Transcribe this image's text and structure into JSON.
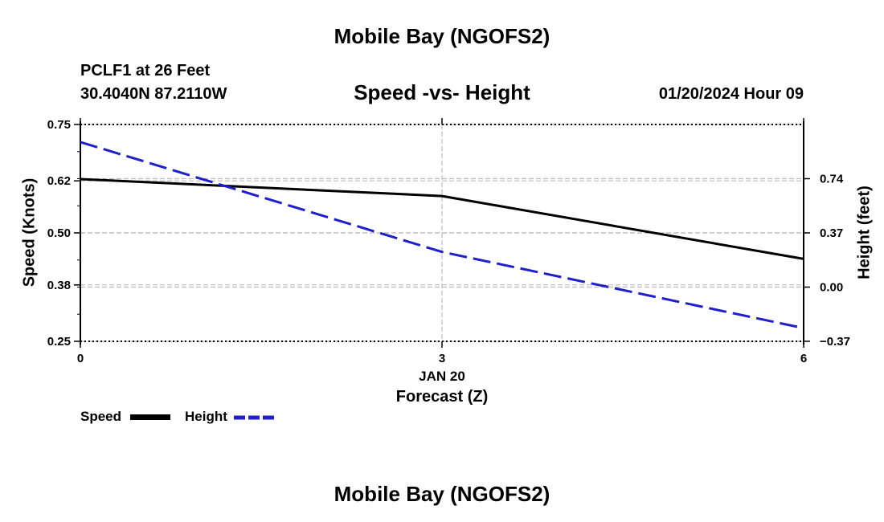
{
  "header": {
    "title": "Mobile Bay (NGOFS2)",
    "station_line1": "PCLF1 at 26 Feet",
    "station_line2": "30.4040N  87.2110W",
    "subtitle": "Speed -vs- Height",
    "datetime": "01/20/2024 Hour 09"
  },
  "footer": {
    "title": "Mobile Bay (NGOFS2)"
  },
  "legend": {
    "speed_label": "Speed",
    "height_label": "Height"
  },
  "colors": {
    "speed": "#000000",
    "height": "#1f1fcc",
    "grid": "#bbbbbb"
  },
  "chart_data": {
    "type": "line",
    "title": "Speed -vs- Height",
    "xlabel": "Forecast (Z)",
    "xlabel_date": "JAN 20",
    "ylabel_left": "Speed (Knots)",
    "ylabel_right": "Height (feet)",
    "xlim": [
      0,
      6
    ],
    "ylim_left": [
      0.25,
      0.75
    ],
    "ylim_right": [
      -0.37,
      1.11
    ],
    "x_ticks": [
      0,
      3,
      6
    ],
    "x_tick_labels": [
      "0",
      "3",
      "6"
    ],
    "y_left_ticks": [
      0.25,
      0.38,
      0.5,
      0.62,
      0.75
    ],
    "y_left_tick_labels": [
      "0.25",
      "0.38",
      "0.50",
      "0.62",
      "0.75"
    ],
    "y_right_ticks": [
      -0.37,
      0.0,
      0.37,
      0.74
    ],
    "y_right_tick_labels": [
      "−0.37",
      "0.00",
      "0.37",
      "0.74"
    ],
    "grid": true,
    "series": [
      {
        "name": "Speed",
        "axis": "left",
        "style": "solid",
        "x": [
          0,
          3,
          6
        ],
        "values": [
          0.624,
          0.585,
          0.44
        ]
      },
      {
        "name": "Height",
        "axis": "right",
        "style": "dashed",
        "x": [
          0,
          3,
          6
        ],
        "values": [
          0.99,
          0.24,
          -0.28
        ]
      }
    ]
  }
}
